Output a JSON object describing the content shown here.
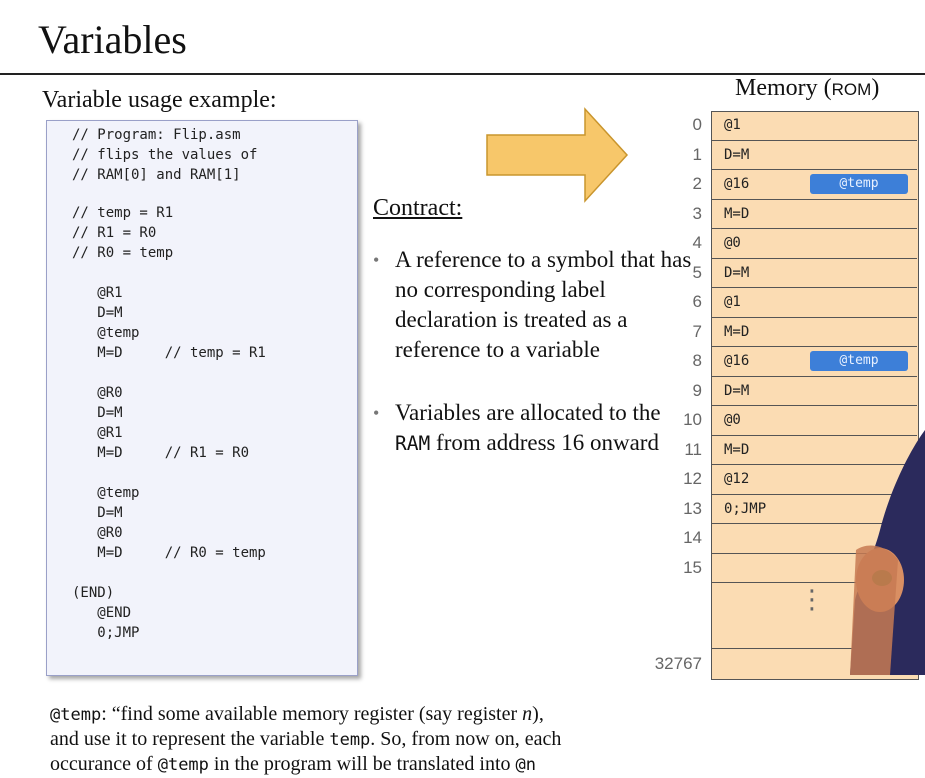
{
  "title": "Variables",
  "subtitle": "Variable usage example:",
  "code_lines": [
    "// Program: Flip.asm",
    "// flips the values of",
    "// RAM[0] and RAM[1]",
    "// temp = R1",
    "// R1 = R0",
    "// R0 = temp",
    "   @R1",
    "   D=M",
    "   @temp",
    "   M=D     // temp = R1",
    "   @R0",
    "   D=M",
    "   @R1",
    "   M=D     // R1 = R0",
    "   @temp",
    "   D=M",
    "   @R0",
    "   M=D     // R0 = temp",
    "(END)",
    "   @END",
    "   0;JMP"
  ],
  "contract": {
    "heading": "Contract:",
    "bullet1": "A reference to a symbol that has no corresponding label declaration is treated as a reference to a variable",
    "bullet2_pre": "Variables are allocated to the ",
    "bullet2_mono": "RAM",
    "bullet2_post": " from address 16 onward",
    "bullet_glyph": "•"
  },
  "memory": {
    "title_pre": "Memory (",
    "title_sc": "ROM",
    "title_post": ")",
    "rows": [
      {
        "addr": "0",
        "instr": "@1"
      },
      {
        "addr": "1",
        "instr": "D=M"
      },
      {
        "addr": "2",
        "instr": "@16",
        "tag": "@temp"
      },
      {
        "addr": "3",
        "instr": "M=D"
      },
      {
        "addr": "4",
        "instr": "@0"
      },
      {
        "addr": "5",
        "instr": "D=M"
      },
      {
        "addr": "6",
        "instr": "@1"
      },
      {
        "addr": "7",
        "instr": "M=D"
      },
      {
        "addr": "8",
        "instr": "@16",
        "tag": "@temp"
      },
      {
        "addr": "9",
        "instr": "D=M"
      },
      {
        "addr": "10",
        "instr": "@0"
      },
      {
        "addr": "11",
        "instr": "M=D"
      },
      {
        "addr": "12",
        "instr": "@12"
      },
      {
        "addr": "13",
        "instr": "0;JMP"
      },
      {
        "addr": "14",
        "instr": ""
      },
      {
        "addr": "15",
        "instr": ""
      }
    ],
    "last_addr": "32767",
    "ellipsis": "⋮"
  },
  "footnote": {
    "line1_mono": "@temp",
    "line1_text": ": “find some available memory register (say register ",
    "line1_italic": "n",
    "line1_end": "),",
    "line2_pre": "and use it to represent the variable ",
    "line2_mono": "temp",
    "line2_post": ". So, from now on, each",
    "line3_pre": "occurance of ",
    "line3_mono": "@temp",
    "line3_mid": " in the program will be translated into ",
    "line3_mono2": "@n"
  },
  "colors": {
    "code_bg": "#f2f3fb",
    "memory_bg": "#fbdcb3",
    "tag_bg": "#3d7fd8",
    "arrow_fill": "#f7c76a"
  }
}
